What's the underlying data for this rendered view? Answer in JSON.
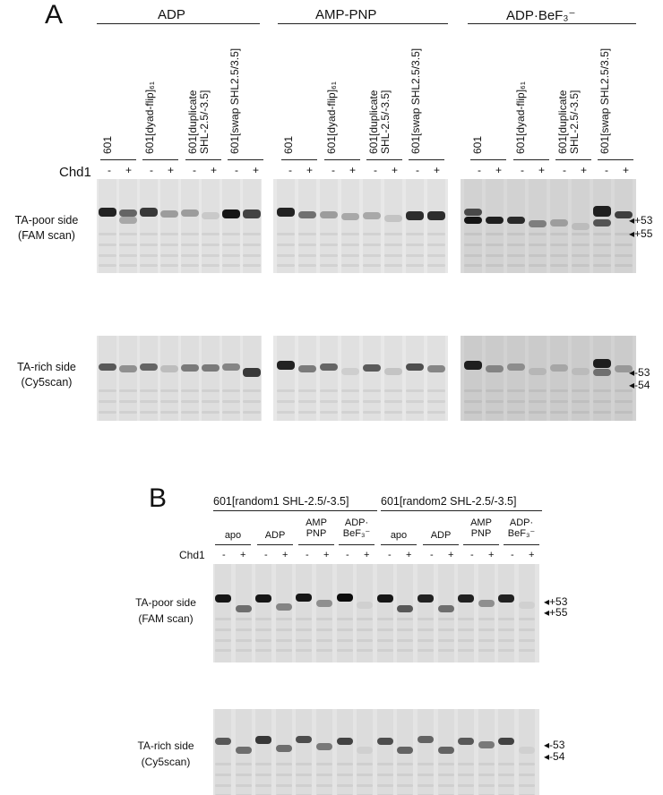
{
  "panel_a": {
    "letter": "A",
    "groups": [
      "ADP",
      "AMP-PNP",
      "ADP·BeF₃⁻"
    ],
    "lane_labels": [
      "601",
      "601[dyad-flip]₆₁",
      "601[duplicate SHL-2.5/-3.5]",
      "601[swap SHL2.5/3.5]"
    ],
    "lane_labels_lines": [
      [
        "601"
      ],
      [
        "601[dyad-flip]₆₁"
      ],
      [
        "601[duplicate",
        "SHL-2.5/-3.5]"
      ],
      [
        "601[swap SHL2.5/3.5]"
      ]
    ],
    "chd1_label": "Chd1",
    "minus": "-",
    "plus": "+",
    "row1_label": [
      "TA-poor side",
      "(FAM scan)"
    ],
    "row2_label": [
      "TA-rich side",
      "(Cy5scan)"
    ],
    "markers_row1": [
      "◂+53",
      "◂+55"
    ],
    "markers_row2": [
      "◂-53",
      "◂-54"
    ]
  },
  "panel_b": {
    "letter": "B",
    "groups": [
      "601[random1 SHL-2.5/-3.5]",
      "601[random2 SHL-2.5/-3.5]"
    ],
    "conditions": [
      [
        "apo"
      ],
      [
        "ADP"
      ],
      [
        "AMP",
        "PNP"
      ],
      [
        "ADP·",
        "BeF₃⁻"
      ]
    ],
    "chd1_label": "Chd1",
    "minus": "-",
    "plus": "+",
    "row1_label": [
      "TA-poor side",
      "(FAM scan)"
    ],
    "row2_label": [
      "TA-rich side",
      "(Cy5scan)"
    ],
    "markers_row1": [
      "◂+53",
      "◂+55"
    ],
    "markers_row2": [
      "◂-53",
      "◂-54"
    ]
  },
  "colors": {
    "gel_bg_a": "#e6e6e6",
    "gel_bg_c": "#d7d7d7",
    "band_dark": "#111111",
    "text": "#111111"
  }
}
